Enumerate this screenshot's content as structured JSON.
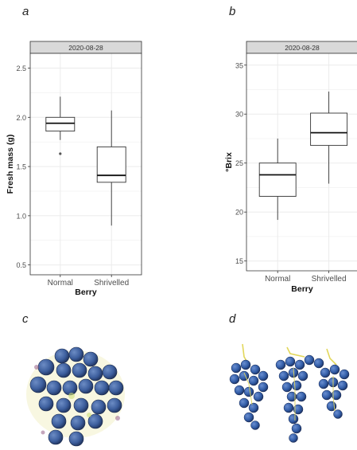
{
  "panels": {
    "a": "a",
    "b": "b",
    "c": "c",
    "d": "d"
  },
  "chart_data": [
    {
      "type": "boxplot",
      "facet_label": "2020-08-28",
      "xlabel": "Berry",
      "ylabel": "Fresh mass (g)",
      "categories": [
        "Normal",
        "Shrivelled"
      ],
      "ylim": [
        0.4,
        2.65
      ],
      "yticks": [
        0.5,
        1.0,
        1.5,
        2.0,
        2.5
      ],
      "ytick_labels": [
        "0.5",
        "1.0",
        "1.5",
        "2.0",
        "2.5"
      ],
      "grid": true,
      "series": [
        {
          "category": "Normal",
          "min": 1.77,
          "q1": 1.86,
          "median": 1.94,
          "q3": 2.0,
          "max": 2.21,
          "outliers": [
            1.63
          ]
        },
        {
          "category": "Shrivelled",
          "min": 0.9,
          "q1": 1.34,
          "median": 1.41,
          "q3": 1.7,
          "max": 2.07,
          "outliers": []
        }
      ]
    },
    {
      "type": "boxplot",
      "facet_label": "2020-08-28",
      "xlabel": "Berry",
      "ylabel": "°Brix",
      "categories": [
        "Normal",
        "Shrivelled"
      ],
      "ylim": [
        14,
        36.2
      ],
      "yticks": [
        15,
        20,
        25,
        30,
        35
      ],
      "ytick_labels": [
        "15",
        "20",
        "25",
        "30",
        "35"
      ],
      "grid": true,
      "series": [
        {
          "category": "Normal",
          "min": 19.2,
          "q1": 21.6,
          "median": 23.8,
          "q3": 25.0,
          "max": 27.5,
          "outliers": []
        },
        {
          "category": "Shrivelled",
          "min": 22.9,
          "q1": 26.8,
          "median": 28.1,
          "q3": 30.1,
          "max": 32.3,
          "outliers": []
        }
      ]
    }
  ],
  "colors": {
    "strip": "#d9d9d9",
    "grid": "#ebebeb",
    "border": "#333333",
    "berry": "#3d5f9e",
    "berry_dark": "#233a6b",
    "stem": "#e2d75a"
  },
  "icons": {
    "c": "blueberry-group-photo",
    "d": "grape-bunches-photo"
  }
}
